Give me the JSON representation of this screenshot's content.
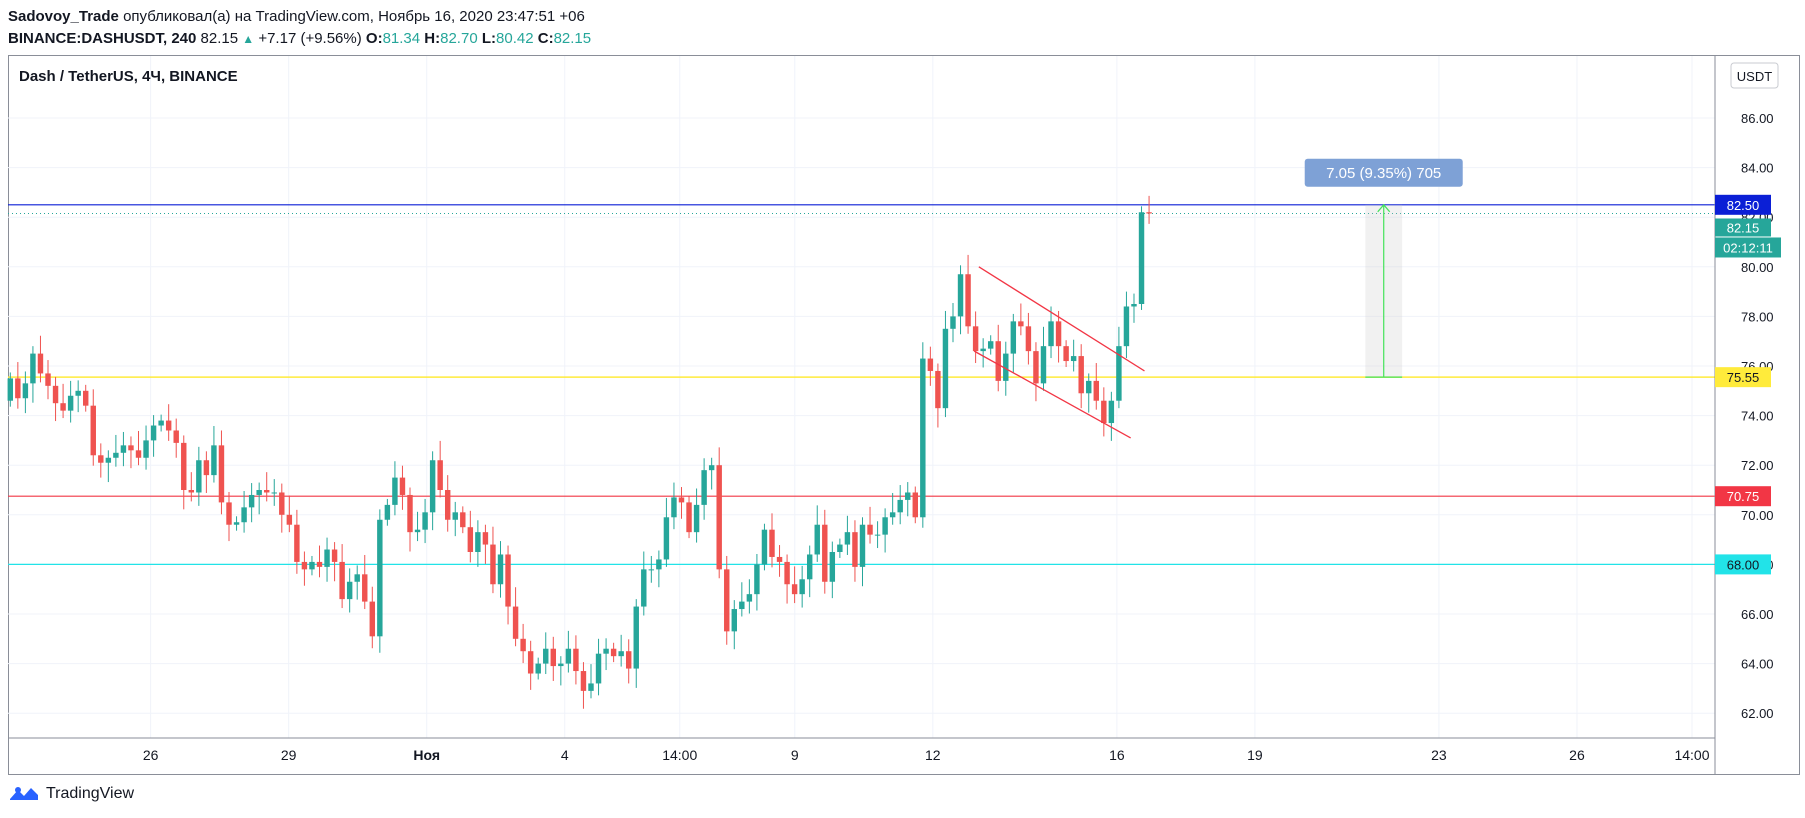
{
  "header": {
    "author": "Sadovoy_Trade",
    "published_text": "опубликовал(а) на TradingView.com, Ноябрь 16, 2020 23:47:51 +06",
    "symbol": "BINANCE:DASHUSDT, 240",
    "last": "82.15",
    "change": "+7.17 (+9.56%)",
    "o_label": "O:",
    "o_value": "81.34",
    "h_label": "H:",
    "h_value": "82.70",
    "l_label": "L:",
    "l_value": "80.42",
    "c_label": "C:",
    "c_value": "82.15"
  },
  "pane": {
    "legend": "Dash / TetherUS, 4Ч, BINANCE",
    "currency_button": "USDT",
    "countdown": "02:12:11",
    "last_price_label": "82.15"
  },
  "footer": {
    "brand": "TradingView"
  },
  "colors": {
    "up": "#26a69a",
    "down": "#ef5350",
    "blue_line": "#0b1fd6",
    "yellow_line": "#ffeb3b",
    "red_line": "#f23645",
    "cyan_line": "#22e3e8",
    "channel": "#f23645",
    "measure": "#7ea1d6"
  },
  "chart_data": {
    "type": "candlestick",
    "title": "Dash / TetherUS, 4Ч, BINANCE",
    "ylim": [
      61.0,
      88.5
    ],
    "y_ticks": [
      "62.00",
      "64.00",
      "66.00",
      "68.00",
      "70.00",
      "72.00",
      "74.00",
      "76.00",
      "78.00",
      "80.00",
      "82.00",
      "84.00",
      "86.00"
    ],
    "x_ticks": [
      {
        "label": "26",
        "day": 3
      },
      {
        "label": "29",
        "day": 6
      },
      {
        "label": "Ноя",
        "day": 9
      },
      {
        "label": "4",
        "day": 12
      },
      {
        "label": "14:00",
        "day": 14.5
      },
      {
        "label": "9",
        "day": 17
      },
      {
        "label": "12",
        "day": 20
      },
      {
        "label": "16",
        "day": 24
      },
      {
        "label": "19",
        "day": 27
      },
      {
        "label": "23",
        "day": 31
      },
      {
        "label": "26",
        "day": 34
      },
      {
        "label": "14:00",
        "day": 36.5
      }
    ],
    "xlim_days": [
      -0.1,
      37
    ],
    "horizontal_levels": [
      {
        "price": 82.5,
        "label": "82.50",
        "color": "#0b1fd6",
        "text_color": "#ffffff"
      },
      {
        "price": 75.55,
        "label": "75.55",
        "color": "#ffeb3b",
        "text_color": "#131722"
      },
      {
        "price": 70.75,
        "label": "70.75",
        "color": "#f23645",
        "text_color": "#ffffff"
      },
      {
        "price": 68.0,
        "label": "68.00",
        "color": "#22e3e8",
        "text_color": "#131722"
      }
    ],
    "last_price": 82.15,
    "measure": {
      "label": "7.05 (9.35%) 705",
      "from_price": 75.55,
      "to_price": 82.5,
      "day_start": 29.4,
      "day_end": 30.2
    },
    "channel": [
      {
        "from": [
          21.0,
          80.0
        ],
        "to": [
          24.6,
          75.8
        ]
      },
      {
        "from": [
          20.9,
          76.6
        ],
        "to": [
          24.3,
          73.1
        ]
      }
    ],
    "closes": [
      75.5,
      74.7,
      75.3,
      76.5,
      75.7,
      75.2,
      74.5,
      74.2,
      74.8,
      75.0,
      74.4,
      72.4,
      72.1,
      72.3,
      72.5,
      72.8,
      72.6,
      72.3,
      73.0,
      73.6,
      73.8,
      73.4,
      72.9,
      71.0,
      70.9,
      72.2,
      71.6,
      72.8,
      70.5,
      69.6,
      69.7,
      70.3,
      70.8,
      71.0,
      70.9,
      70.9,
      70.0,
      69.6,
      68.1,
      67.8,
      68.1,
      67.9,
      68.6,
      68.1,
      66.6,
      67.3,
      67.6,
      66.5,
      65.1,
      69.8,
      70.4,
      71.5,
      70.8,
      69.3,
      69.4,
      70.1,
      72.2,
      71.0,
      69.8,
      70.1,
      69.5,
      68.5,
      69.3,
      68.8,
      67.2,
      68.4,
      66.3,
      65.0,
      64.5,
      63.6,
      64.0,
      64.6,
      63.9,
      64.0,
      64.6,
      63.7,
      62.9,
      63.2,
      64.4,
      64.6,
      64.3,
      64.5,
      63.8,
      66.3,
      67.8,
      67.8,
      68.2,
      69.9,
      70.7,
      70.5,
      69.3,
      70.4,
      71.8,
      72.0,
      67.8,
      65.3,
      66.2,
      66.5,
      66.8,
      68.0,
      69.4,
      68.3,
      68.1,
      67.2,
      66.8,
      67.4,
      68.4,
      69.6,
      67.3,
      68.5,
      68.8,
      69.3,
      67.9,
      69.6,
      69.2,
      69.2,
      69.9,
      70.1,
      70.6,
      70.9,
      69.9,
      76.3,
      75.8,
      74.3,
      77.5,
      78.0,
      79.7,
      77.6,
      76.6,
      76.7,
      77.0,
      75.4,
      76.5,
      77.8,
      77.6,
      76.6,
      75.3,
      76.8,
      77.8,
      76.8,
      76.2,
      76.4,
      74.9,
      75.4,
      74.6,
      73.7,
      74.6,
      76.8,
      78.4,
      78.5,
      82.2,
      82.15
    ],
    "opens_first": 74.6,
    "highs_extra": 0.6,
    "lows_extra": 0.6
  }
}
